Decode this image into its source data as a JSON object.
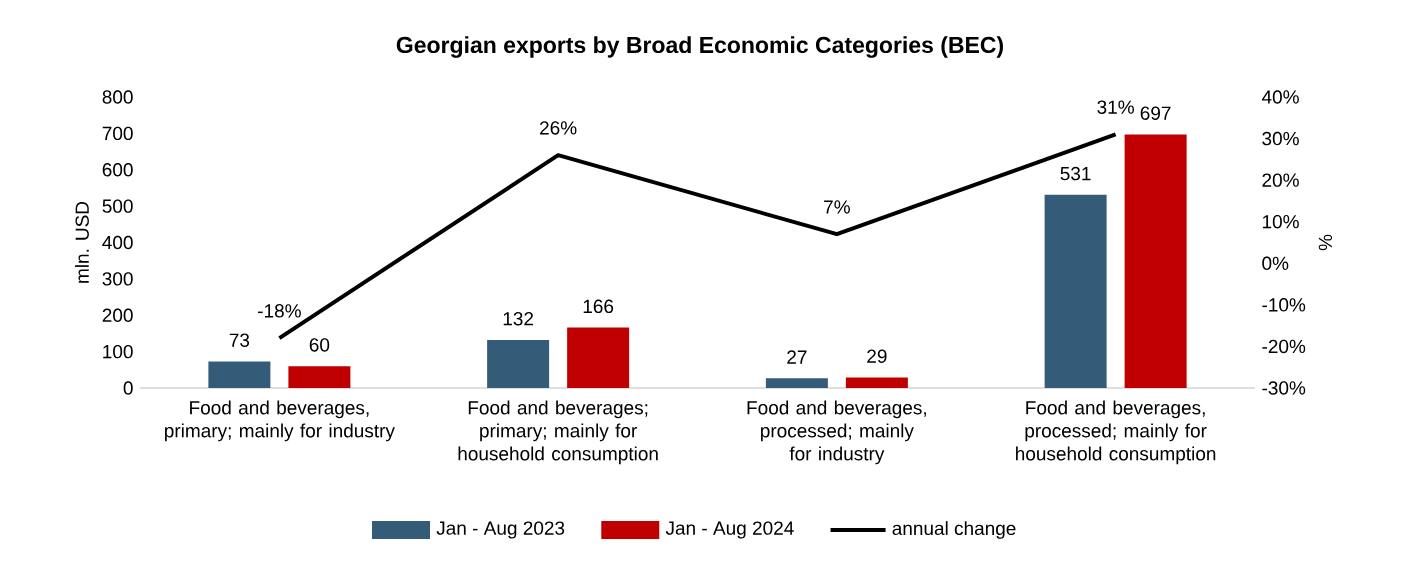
{
  "chart_data": {
    "type": "bar",
    "title": "Georgian exports by Broad Economic Categories (BEC)",
    "ylabel": "mln. USD",
    "y2label": "%",
    "categories": [
      "Food and beverages, primary; mainly for industry",
      "Food and beverages; primary; mainly for household consumption",
      "Food and beverages, processed; mainly for industry",
      "Food and beverages, processed; mainly for household consumption"
    ],
    "series": [
      {
        "name": "Jan - Aug 2023",
        "color": "#345c78",
        "values": [
          73,
          132,
          27,
          531
        ],
        "value_labels": [
          "73",
          "132",
          "27",
          "531"
        ]
      },
      {
        "name": "Jan - Aug 2024",
        "color": "#c00000",
        "values": [
          60,
          166,
          29,
          697
        ],
        "value_labels": [
          "60",
          "166",
          "29",
          "697"
        ]
      },
      {
        "name": "annual change",
        "type": "line",
        "axis": "y2",
        "color": "#000000",
        "line_style": "solid",
        "values": [
          -18,
          26,
          7,
          31
        ],
        "value_labels": [
          "-18%",
          "26%",
          "7%",
          "31%"
        ]
      }
    ],
    "ylim": [
      0,
      800
    ],
    "yticks": [
      0,
      100,
      200,
      300,
      400,
      500,
      600,
      700,
      800
    ],
    "y2lim": [
      -30,
      40
    ],
    "y2ticks": [
      {
        "value": -30,
        "label": "-30%"
      },
      {
        "value": -20,
        "label": "-20%"
      },
      {
        "value": -10,
        "label": "-10%"
      },
      {
        "value": 0,
        "label": "0%"
      },
      {
        "value": 10,
        "label": "10%"
      },
      {
        "value": 20,
        "label": "20%"
      },
      {
        "value": 30,
        "label": "30%"
      },
      {
        "value": 40,
        "label": "40%"
      }
    ],
    "legend": "bottom"
  }
}
